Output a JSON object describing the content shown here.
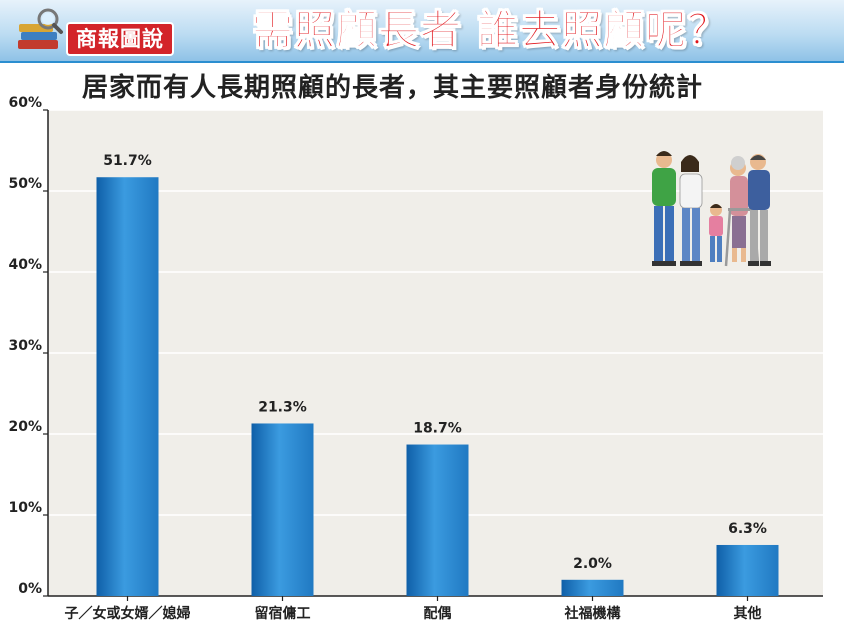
{
  "header": {
    "brand": "商報圖說",
    "headline": "需照顧長者 誰去照顧呢？"
  },
  "chart_data": {
    "type": "bar",
    "title": "居家而有人長期照顧的長者，其主要照顧者身份統計",
    "categories": [
      "子／女或女婿／媳婦",
      "留宿傭工",
      "配偶",
      "社福機構",
      "其他"
    ],
    "values": [
      51.7,
      21.3,
      18.7,
      2.0,
      6.3
    ],
    "data_labels": [
      "51.7%",
      "21.3%",
      "18.7%",
      "2.0%",
      "6.3%"
    ],
    "yticks": [
      "0%",
      "10%",
      "20%",
      "30%",
      "40%",
      "50%",
      "60%"
    ],
    "ylim": [
      0,
      60
    ],
    "grid": true,
    "bar_color": "#2079c2",
    "plot_background": "#f0eee9"
  }
}
